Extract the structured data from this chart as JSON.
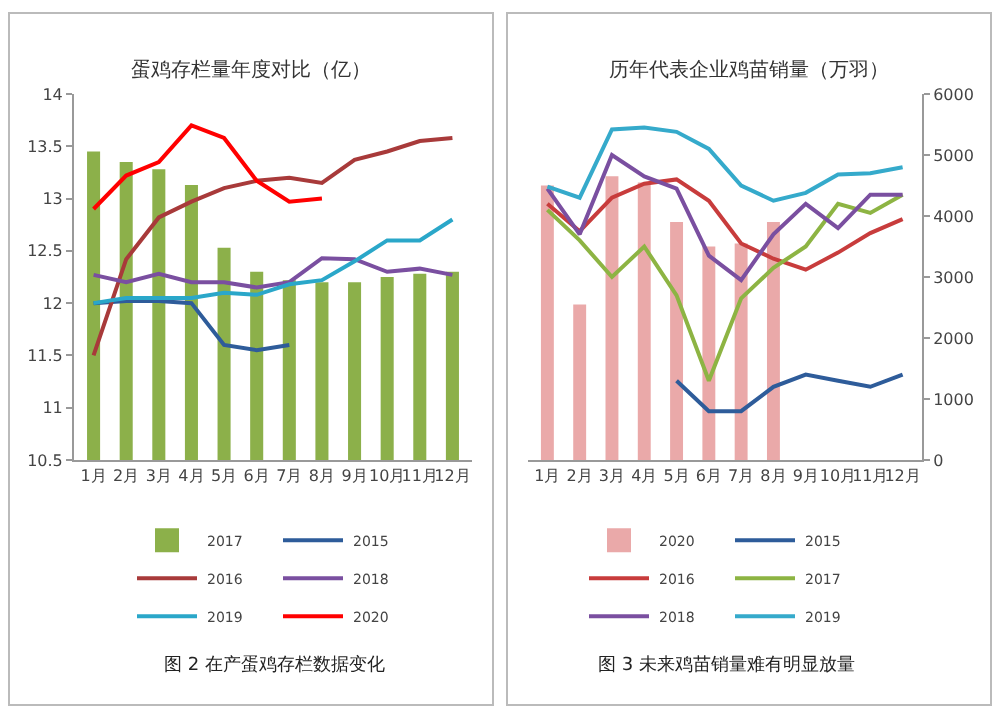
{
  "chart_data": [
    {
      "type": "line",
      "title": "蛋鸡存栏量年度对比（亿）",
      "categories": [
        "1月",
        "2月",
        "3月",
        "4月",
        "5月",
        "6月",
        "7月",
        "8月",
        "9月",
        "10月",
        "11月",
        "12月"
      ],
      "series": [
        {
          "name": "2017",
          "type": "bar",
          "color": "#8cb04a",
          "values": [
            13.45,
            13.35,
            13.28,
            13.13,
            12.53,
            12.3,
            12.22,
            12.2,
            12.2,
            12.25,
            12.28,
            12.3
          ]
        },
        {
          "name": "2015",
          "color": "#2e5c9a",
          "values": [
            12.0,
            12.02,
            12.02,
            12.0,
            11.6,
            11.55,
            11.6,
            null,
            null,
            null,
            null,
            null
          ]
        },
        {
          "name": "2016",
          "color": "#a83a3a",
          "values": [
            11.5,
            12.42,
            12.82,
            12.97,
            13.1,
            13.17,
            13.2,
            13.15,
            13.37,
            13.45,
            13.55,
            13.58
          ]
        },
        {
          "name": "2018",
          "color": "#7a4fa0",
          "values": [
            12.27,
            12.2,
            12.28,
            12.2,
            12.2,
            12.15,
            12.2,
            12.43,
            12.42,
            12.3,
            12.33,
            12.27
          ]
        },
        {
          "name": "2019",
          "color": "#2aa7c9",
          "values": [
            12.0,
            12.05,
            12.05,
            12.05,
            12.1,
            12.08,
            12.18,
            12.22,
            12.4,
            12.6,
            12.6,
            12.8
          ]
        },
        {
          "name": "2020",
          "color": "#ff0000",
          "values": [
            12.9,
            13.22,
            13.35,
            13.7,
            13.58,
            13.17,
            12.97,
            13.0,
            null,
            null,
            null,
            null
          ]
        }
      ],
      "ylim": [
        10.5,
        14
      ],
      "yticks": [
        10.5,
        11,
        11.5,
        12,
        12.5,
        13,
        13.5,
        14
      ],
      "grid": false,
      "legend": "bottom",
      "marker": "none",
      "line_style": "solid",
      "annotations": [
        "图 2 在产蛋鸡存栏数据变化"
      ]
    },
    {
      "type": "line",
      "title": "历年代表企业鸡苗销量（万羽）",
      "categories": [
        "1月",
        "2月",
        "3月",
        "4月",
        "5月",
        "6月",
        "7月",
        "8月",
        "9月",
        "10月",
        "11月",
        "12月"
      ],
      "series": [
        {
          "name": "2020",
          "type": "bar",
          "axis": "y2",
          "color": "#eaa9a9",
          "values": [
            4500,
            2550,
            4650,
            4550,
            3900,
            3500,
            3550,
            3900,
            null,
            null,
            null,
            null
          ]
        },
        {
          "name": "2015",
          "axis": "y2",
          "color": "#2e5c9a",
          "values": [
            null,
            null,
            null,
            null,
            1300,
            800,
            800,
            1200,
            1400,
            1300,
            1200,
            1400
          ]
        },
        {
          "name": "2016",
          "axis": "y2",
          "color": "#c83c3c",
          "values": [
            4200,
            3750,
            4300,
            4530,
            4600,
            4250,
            3550,
            3300,
            3120,
            3400,
            3720,
            3950
          ]
        },
        {
          "name": "2017",
          "axis": "y2",
          "color": "#8db443",
          "values": [
            4100,
            3600,
            3000,
            3500,
            2700,
            1300,
            2650,
            3150,
            3500,
            4200,
            4050,
            4350
          ]
        },
        {
          "name": "2018",
          "axis": "y2",
          "color": "#7a4fa0",
          "values": [
            4450,
            3700,
            5000,
            4650,
            4450,
            3350,
            2950,
            3700,
            4200,
            3800,
            4350,
            4350
          ]
        },
        {
          "name": "2019",
          "axis": "y2",
          "color": "#35aacb",
          "values": [
            4480,
            4300,
            5420,
            5450,
            5380,
            5100,
            4500,
            4250,
            4380,
            4680,
            4700,
            4800
          ]
        }
      ],
      "y2lim": [
        0,
        6000
      ],
      "y2ticks": [
        0,
        1000,
        2000,
        3000,
        4000,
        5000,
        6000
      ],
      "grid": false,
      "legend": "bottom",
      "marker": "none",
      "line_style": "solid",
      "annotations": [
        "图 3 未来鸡苗销量难有明显放量"
      ]
    }
  ]
}
